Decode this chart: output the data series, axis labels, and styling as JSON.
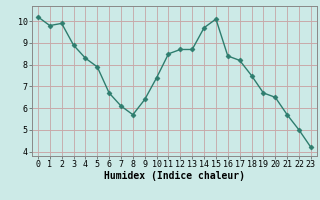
{
  "x": [
    0,
    1,
    2,
    3,
    4,
    5,
    6,
    7,
    8,
    9,
    10,
    11,
    12,
    13,
    14,
    15,
    16,
    17,
    18,
    19,
    20,
    21,
    22,
    23
  ],
  "y": [
    10.2,
    9.8,
    9.9,
    8.9,
    8.3,
    7.9,
    6.7,
    6.1,
    5.7,
    6.4,
    7.4,
    8.5,
    8.7,
    8.7,
    9.7,
    10.1,
    8.4,
    8.2,
    7.5,
    6.7,
    6.5,
    5.7,
    5.0,
    4.2
  ],
  "line_color": "#2e7d6e",
  "marker": "D",
  "markersize": 2.5,
  "linewidth": 1.0,
  "bg_color": "#cceae7",
  "grid_color_major": "#b8d8d5",
  "grid_color_minor": "#d4eceb",
  "xlabel": "Humidex (Indice chaleur)",
  "xlabel_fontsize": 7,
  "tick_fontsize": 6,
  "ylim": [
    3.8,
    10.7
  ],
  "xlim": [
    -0.5,
    23.5
  ],
  "yticks": [
    4,
    5,
    6,
    7,
    8,
    9,
    10
  ],
  "xticks": [
    0,
    1,
    2,
    3,
    4,
    5,
    6,
    7,
    8,
    9,
    10,
    11,
    12,
    13,
    14,
    15,
    16,
    17,
    18,
    19,
    20,
    21,
    22,
    23
  ]
}
